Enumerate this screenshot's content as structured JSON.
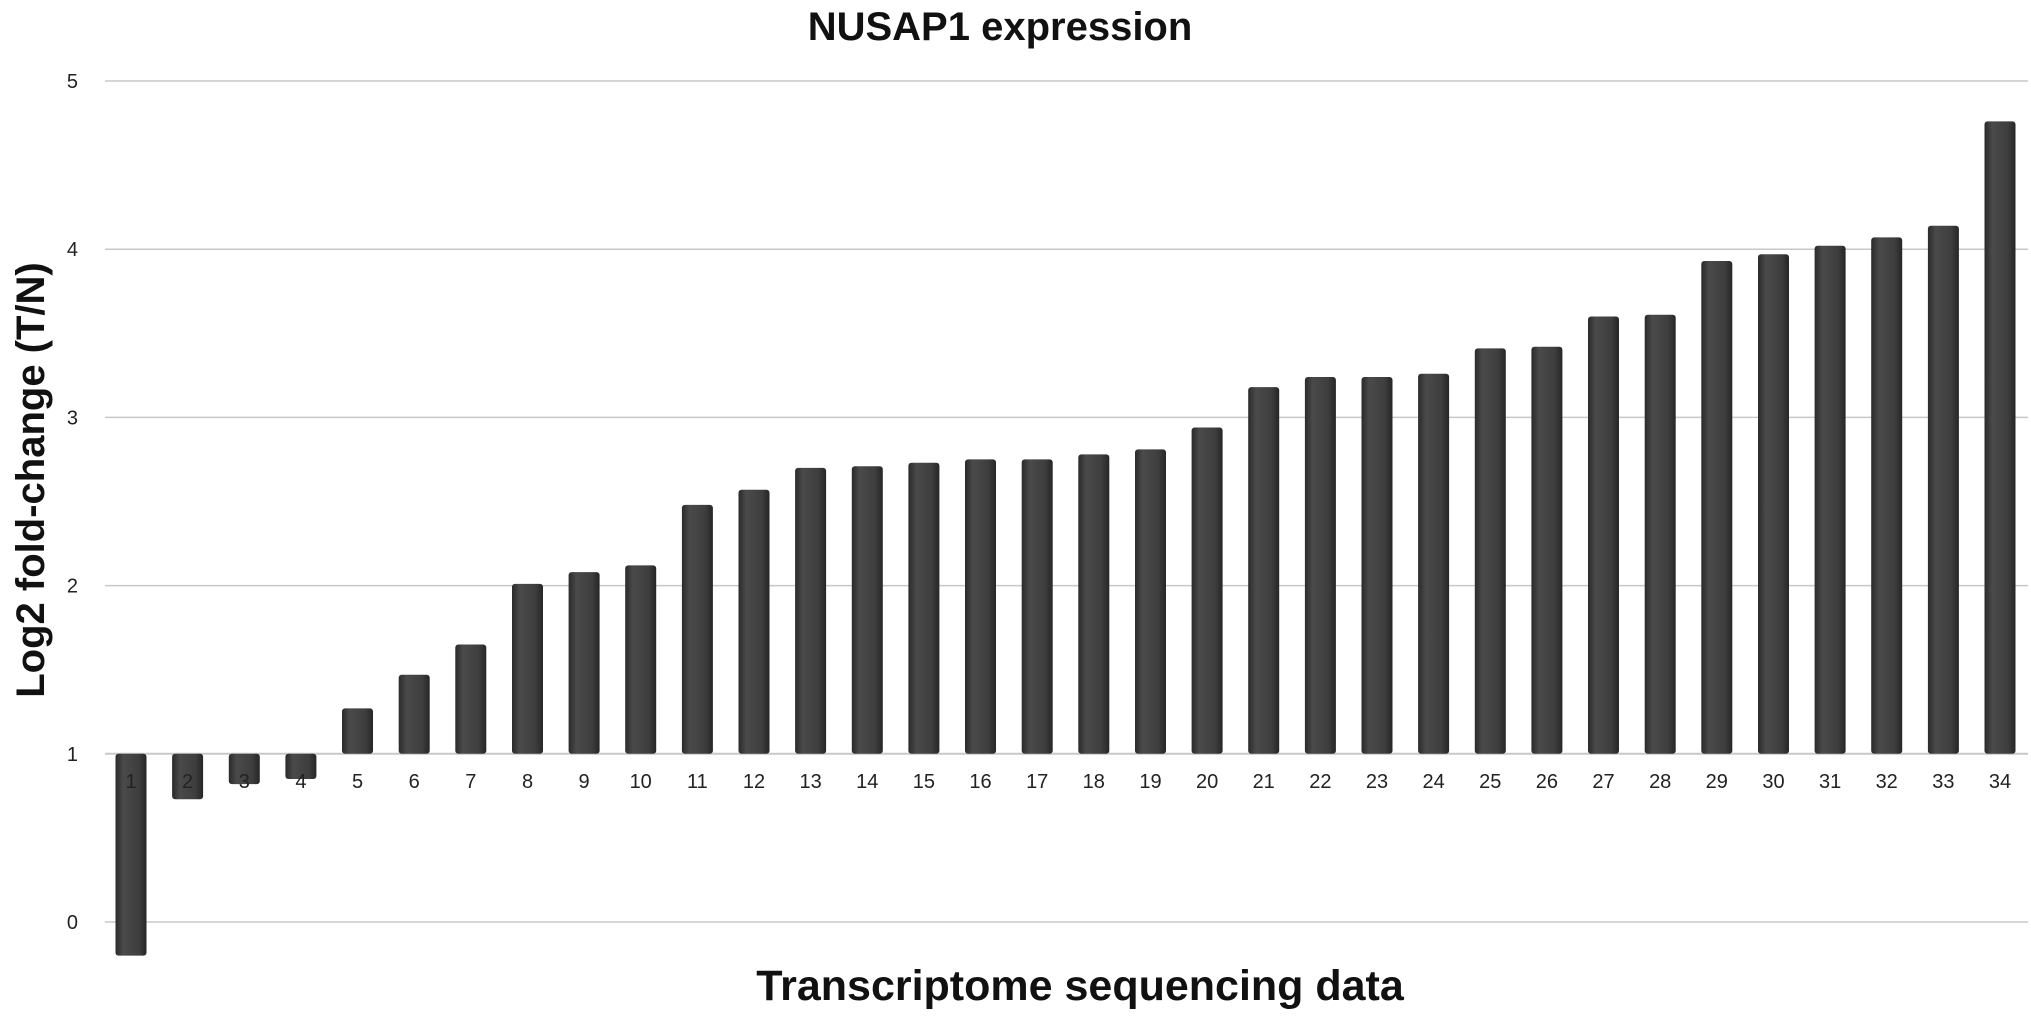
{
  "chart_data": {
    "type": "bar",
    "title": "NUSAP1 expression",
    "xlabel": "Transcriptome sequencing data",
    "ylabel": "Log2 fold-change (T/N)",
    "ylim": [
      0,
      5
    ],
    "yticks": [
      0,
      1,
      2,
      3,
      4,
      5
    ],
    "baseline": 1,
    "grid": true,
    "bar_color": "#3c3c3c",
    "grid_color": "#c8c8c8",
    "categories": [
      "1",
      "2",
      "3",
      "4",
      "5",
      "6",
      "7",
      "8",
      "9",
      "10",
      "11",
      "12",
      "13",
      "14",
      "15",
      "16",
      "17",
      "18",
      "19",
      "20",
      "21",
      "22",
      "23",
      "24",
      "25",
      "26",
      "27",
      "28",
      "29",
      "30",
      "31",
      "32",
      "33",
      "34"
    ],
    "values": [
      -0.2,
      0.73,
      0.82,
      0.85,
      1.27,
      1.47,
      1.65,
      2.01,
      2.08,
      2.12,
      2.48,
      2.57,
      2.7,
      2.71,
      2.73,
      2.75,
      2.75,
      2.78,
      2.81,
      2.94,
      3.18,
      3.24,
      3.24,
      3.26,
      3.41,
      3.42,
      3.6,
      3.61,
      3.93,
      3.97,
      4.02,
      4.07,
      4.14,
      4.76
    ]
  }
}
